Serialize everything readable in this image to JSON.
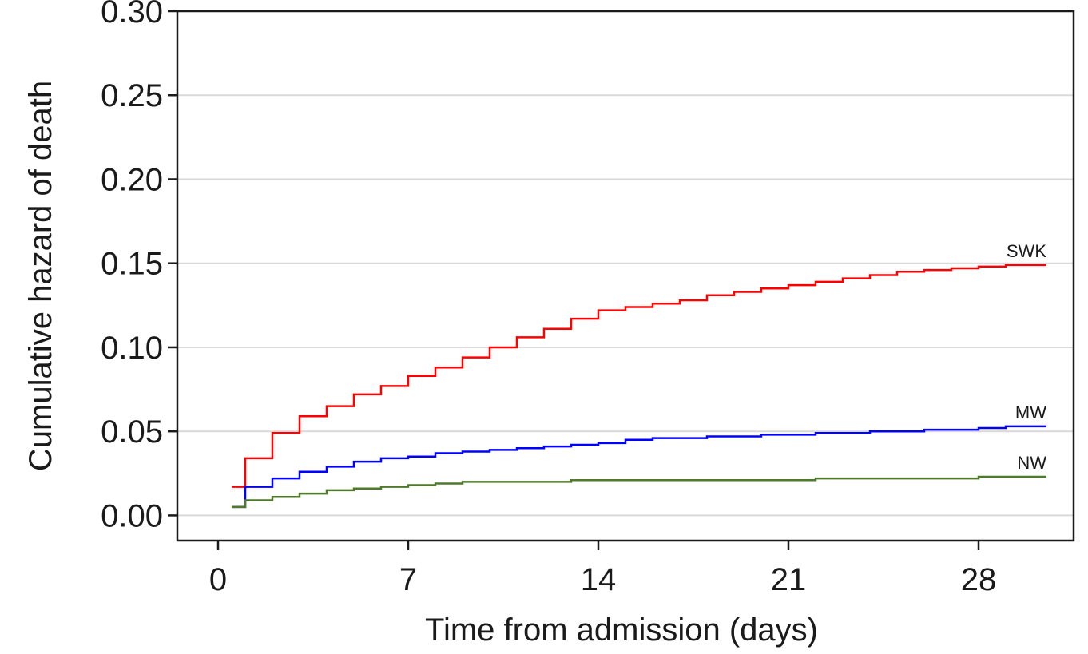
{
  "chart_data": {
    "type": "line",
    "title": "",
    "xlabel": "Time from admission (days)",
    "ylabel": "Cumulative hazard of death",
    "xlim": [
      -1.5,
      31.5
    ],
    "ylim": [
      -0.015,
      0.3
    ],
    "xticks": [
      0,
      7,
      14,
      21,
      28
    ],
    "xtick_labels": [
      "0",
      "7",
      "14",
      "21",
      "28"
    ],
    "yticks": [
      0.0,
      0.05,
      0.1,
      0.15,
      0.2,
      0.25,
      0.3
    ],
    "ytick_labels": [
      "0.00",
      "0.05",
      "0.10",
      "0.15",
      "0.20",
      "0.25",
      "0.30"
    ],
    "grid": "horizontal",
    "step": true,
    "series": [
      {
        "name": "SWK",
        "color": "#ff0000",
        "x": [
          0.5,
          1,
          2,
          3,
          4,
          5,
          6,
          7,
          8,
          9,
          10,
          11,
          12,
          13,
          14,
          15,
          16,
          17,
          18,
          19,
          20,
          21,
          22,
          23,
          24,
          25,
          26,
          27,
          28,
          29,
          30.5
        ],
        "y": [
          0.017,
          0.034,
          0.049,
          0.059,
          0.065,
          0.072,
          0.077,
          0.083,
          0.088,
          0.094,
          0.1,
          0.106,
          0.111,
          0.117,
          0.122,
          0.124,
          0.126,
          0.128,
          0.131,
          0.133,
          0.135,
          0.137,
          0.139,
          0.141,
          0.143,
          0.145,
          0.146,
          0.147,
          0.148,
          0.149,
          0.149
        ]
      },
      {
        "name": "MW",
        "color": "#0000ff",
        "x": [
          0.5,
          1,
          2,
          3,
          4,
          5,
          6,
          7,
          8,
          9,
          10,
          11,
          12,
          13,
          14,
          15,
          16,
          17,
          18,
          19,
          20,
          21,
          22,
          23,
          24,
          25,
          26,
          27,
          28,
          29,
          30.5
        ],
        "y": [
          0.005,
          0.017,
          0.022,
          0.026,
          0.029,
          0.032,
          0.034,
          0.035,
          0.037,
          0.038,
          0.039,
          0.04,
          0.041,
          0.042,
          0.043,
          0.045,
          0.046,
          0.046,
          0.047,
          0.047,
          0.048,
          0.048,
          0.049,
          0.049,
          0.05,
          0.05,
          0.051,
          0.051,
          0.052,
          0.053,
          0.053
        ]
      },
      {
        "name": "NW",
        "color": "#4f7a2a",
        "x": [
          0.5,
          1,
          2,
          3,
          4,
          5,
          6,
          7,
          8,
          9,
          10,
          11,
          12,
          13,
          14,
          15,
          16,
          17,
          18,
          19,
          20,
          21,
          22,
          23,
          24,
          25,
          26,
          27,
          28,
          29,
          30.5
        ],
        "y": [
          0.005,
          0.009,
          0.011,
          0.013,
          0.015,
          0.016,
          0.017,
          0.018,
          0.019,
          0.02,
          0.02,
          0.02,
          0.02,
          0.021,
          0.021,
          0.021,
          0.021,
          0.021,
          0.021,
          0.021,
          0.021,
          0.021,
          0.022,
          0.022,
          0.022,
          0.022,
          0.022,
          0.022,
          0.023,
          0.023,
          0.023
        ]
      }
    ]
  }
}
